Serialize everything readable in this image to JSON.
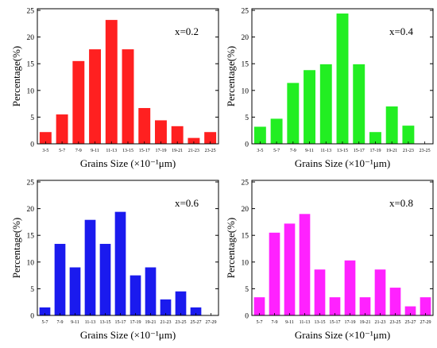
{
  "chart_data": [
    {
      "type": "bar",
      "annotation": "x=0.2",
      "xlabel": "Grains Size (×10⁻¹μm)",
      "ylabel": "Percentage(%)",
      "ylim": [
        0,
        25
      ],
      "yticks": [
        "0",
        "5",
        "10",
        "15",
        "20",
        "25"
      ],
      "categories": [
        "3-5",
        "5-7",
        "7-9",
        "9-11",
        "11-13",
        "13-15",
        "15-17",
        "17-19",
        "19-21",
        "21-23",
        "23-25"
      ],
      "values": [
        2.2,
        5.5,
        15.5,
        17.7,
        23.2,
        17.7,
        6.7,
        4.4,
        3.3,
        1.1,
        2.2
      ],
      "color": "#ff2020"
    },
    {
      "type": "bar",
      "annotation": "x=0.4",
      "xlabel": "Grains Size (×10⁻¹μm)",
      "ylabel": "Percentage(%)",
      "ylim": [
        0,
        25
      ],
      "yticks": [
        "0",
        "5",
        "10",
        "15",
        "20",
        "25"
      ],
      "categories": [
        "3-5",
        "5-7",
        "7-9",
        "9-11",
        "11-13",
        "13-15",
        "15-17",
        "17-19",
        "19-21",
        "21-23",
        "23-25"
      ],
      "values": [
        3.2,
        4.7,
        11.4,
        13.8,
        14.9,
        24.4,
        14.9,
        2.2,
        7.0,
        3.4,
        0
      ],
      "color": "#22ee22"
    },
    {
      "type": "bar",
      "annotation": "x=0.6",
      "xlabel": "Grains Size (×10⁻¹μm)",
      "ylabel": "Percentage(%)",
      "ylim": [
        0,
        25
      ],
      "yticks": [
        "0",
        "5",
        "10",
        "15",
        "20",
        "25"
      ],
      "categories": [
        "5-7",
        "7-9",
        "9-11",
        "11-13",
        "13-15",
        "15-17",
        "17-19",
        "19-21",
        "21-23",
        "23-25",
        "25-27",
        "27-29"
      ],
      "values": [
        1.5,
        13.4,
        9.0,
        17.9,
        13.4,
        19.4,
        7.5,
        9.0,
        3.0,
        4.5,
        1.5,
        0
      ],
      "color": "#1a1aee"
    },
    {
      "type": "bar",
      "annotation": "x=0.8",
      "xlabel": "Grains Size (×10⁻¹μm)",
      "ylabel": "Percentage(%)",
      "ylim": [
        0,
        25
      ],
      "yticks": [
        "0",
        "5",
        "10",
        "15",
        "20",
        "25"
      ],
      "categories": [
        "5-7",
        "7-9",
        "9-11",
        "11-13",
        "13-15",
        "15-17",
        "17-19",
        "19-21",
        "21-23",
        "23-25",
        "25-27",
        "27-29"
      ],
      "values": [
        3.4,
        15.5,
        17.2,
        19.0,
        8.6,
        3.4,
        10.3,
        3.4,
        8.6,
        5.2,
        1.7,
        3.4
      ],
      "color": "#ff22ff"
    }
  ]
}
